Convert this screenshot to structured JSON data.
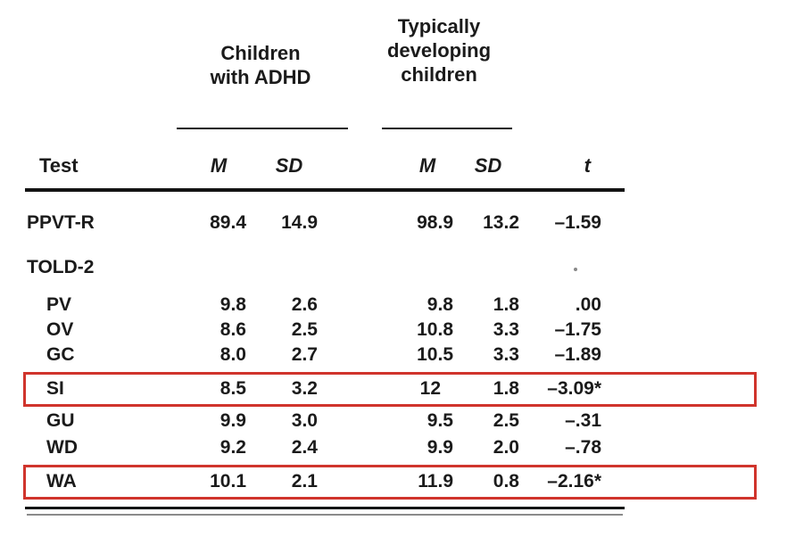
{
  "figure": {
    "group_headers": [
      {
        "id": "adhd",
        "lines": [
          "Children",
          "with ADHD"
        ]
      },
      {
        "id": "td",
        "lines": [
          "Typically",
          "developing",
          "children"
        ]
      }
    ],
    "columns": [
      "Test",
      "M",
      "SD",
      "M",
      "SD",
      "t"
    ],
    "rows": [
      {
        "test": "PPVT-R",
        "level": 0,
        "highlighted": false,
        "values": [
          "89.4",
          "14.9",
          "98.9",
          "13.2",
          "–1.59"
        ]
      },
      {
        "test": "TOLD-2",
        "level": 0,
        "highlighted": false,
        "values": [
          "",
          "",
          "",
          "",
          ""
        ]
      },
      {
        "test": "PV",
        "level": 1,
        "highlighted": false,
        "values": [
          "9.8",
          "2.6",
          "9.8",
          "1.8",
          ".00"
        ]
      },
      {
        "test": "OV",
        "level": 1,
        "highlighted": false,
        "values": [
          "8.6",
          "2.5",
          "10.8",
          "3.3",
          "–1.75"
        ]
      },
      {
        "test": "GC",
        "level": 1,
        "highlighted": false,
        "values": [
          "8.0",
          "2.7",
          "10.5",
          "3.3",
          "–1.89"
        ]
      },
      {
        "test": "SI",
        "level": 1,
        "highlighted": true,
        "values": [
          "8.5",
          "3.2",
          "12",
          "1.8",
          "–3.09*"
        ]
      },
      {
        "test": "GU",
        "level": 1,
        "highlighted": false,
        "values": [
          "9.9",
          "3.0",
          "9.5",
          "2.5",
          "–.31"
        ]
      },
      {
        "test": "WD",
        "level": 1,
        "highlighted": false,
        "values": [
          "9.2",
          "2.4",
          "9.9",
          "2.0",
          "–.78"
        ]
      },
      {
        "test": "WA",
        "level": 1,
        "highlighted": true,
        "values": [
          "10.1",
          "2.1",
          "11.9",
          "0.8",
          "–2.16*"
        ]
      }
    ],
    "highlight_color": "#d0342c",
    "text_color": "#1b1b1b"
  }
}
